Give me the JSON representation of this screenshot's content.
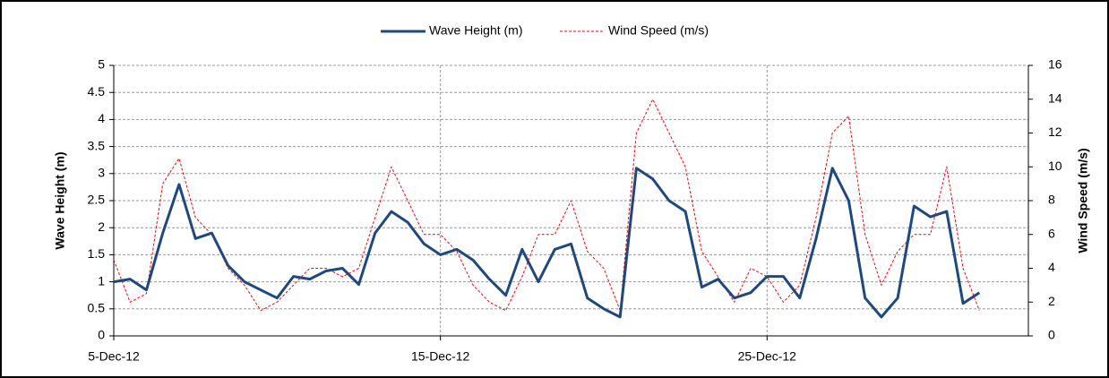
{
  "chart_data": {
    "type": "line",
    "x": [
      "2012-12-05T00:00",
      "2012-12-05T12:00",
      "2012-12-06T00:00",
      "2012-12-06T12:00",
      "2012-12-07T00:00",
      "2012-12-07T12:00",
      "2012-12-08T00:00",
      "2012-12-08T12:00",
      "2012-12-09T00:00",
      "2012-12-09T12:00",
      "2012-12-10T00:00",
      "2012-12-10T12:00",
      "2012-12-11T00:00",
      "2012-12-11T12:00",
      "2012-12-12T00:00",
      "2012-12-12T12:00",
      "2012-12-13T00:00",
      "2012-12-13T12:00",
      "2012-12-14T00:00",
      "2012-12-14T12:00",
      "2012-12-15T00:00",
      "2012-12-15T12:00",
      "2012-12-16T00:00",
      "2012-12-16T12:00",
      "2012-12-17T00:00",
      "2012-12-17T12:00",
      "2012-12-18T00:00",
      "2012-12-18T12:00",
      "2012-12-19T00:00",
      "2012-12-19T12:00",
      "2012-12-20T00:00",
      "2012-12-20T12:00",
      "2012-12-21T00:00",
      "2012-12-21T12:00",
      "2012-12-22T00:00",
      "2012-12-22T12:00",
      "2012-12-23T00:00",
      "2012-12-23T12:00",
      "2012-12-24T00:00",
      "2012-12-24T12:00",
      "2012-12-25T00:00",
      "2012-12-25T12:00",
      "2012-12-26T00:00",
      "2012-12-26T12:00",
      "2012-12-27T00:00",
      "2012-12-27T12:00",
      "2012-12-28T00:00",
      "2012-12-28T12:00",
      "2012-12-29T00:00",
      "2012-12-29T12:00",
      "2012-12-30T00:00",
      "2012-12-30T12:00",
      "2012-12-31T00:00",
      "2012-12-31T12:00"
    ],
    "series": [
      {
        "name": "Wave Height (m)",
        "color": "#1f497d",
        "values": [
          1.0,
          1.05,
          0.85,
          1.9,
          2.8,
          1.8,
          1.9,
          1.3,
          1.0,
          0.85,
          0.7,
          1.1,
          1.05,
          1.2,
          1.25,
          0.95,
          1.9,
          2.3,
          2.1,
          1.7,
          1.5,
          1.6,
          1.4,
          1.05,
          0.75,
          1.6,
          1.0,
          1.6,
          1.7,
          0.7,
          0.5,
          0.35,
          3.1,
          2.9,
          2.5,
          2.3,
          0.9,
          1.05,
          0.7,
          0.8,
          1.1,
          1.1,
          0.7,
          1.8,
          3.1,
          2.5,
          0.7,
          0.35,
          0.7,
          2.4,
          2.2,
          2.3,
          0.6,
          0.8
        ]
      },
      {
        "name": "Wind Speed (m/s)",
        "color": "#ff0000",
        "axis": "y2",
        "dashed": true,
        "values": [
          4.5,
          2,
          2.5,
          9,
          10.5,
          7,
          6,
          4,
          3,
          1.5,
          2,
          3,
          4,
          4,
          3.5,
          4,
          7,
          10,
          8,
          6,
          6,
          5,
          3,
          2,
          1.5,
          3.5,
          6,
          6,
          8,
          5,
          4,
          1.5,
          12,
          14,
          12,
          10,
          5,
          3.5,
          2,
          4,
          3.5,
          2,
          3,
          7,
          12,
          13,
          6,
          3,
          5,
          6,
          6,
          10,
          4,
          1.5
        ]
      }
    ],
    "xlim": [
      "2012-12-05T00:00",
      "2013-01-02T00:00"
    ],
    "xticks": [
      {
        "value": "2012-12-05T00:00",
        "label": "5-Dec-12"
      },
      {
        "value": "2012-12-15T00:00",
        "label": "15-Dec-12"
      },
      {
        "value": "2012-12-25T00:00",
        "label": "25-Dec-12"
      }
    ],
    "ylabel": "Wave Height (m)",
    "ylim": [
      0,
      5
    ],
    "yticks": [
      0,
      0.5,
      1,
      1.5,
      2,
      2.5,
      3,
      3.5,
      4,
      4.5,
      5
    ],
    "y2label": "Wind Speed (m/s)",
    "y2lim": [
      0,
      16
    ],
    "y2ticks": [
      0,
      2,
      4,
      6,
      8,
      10,
      12,
      14,
      16
    ],
    "grid": true,
    "legend": "top"
  }
}
